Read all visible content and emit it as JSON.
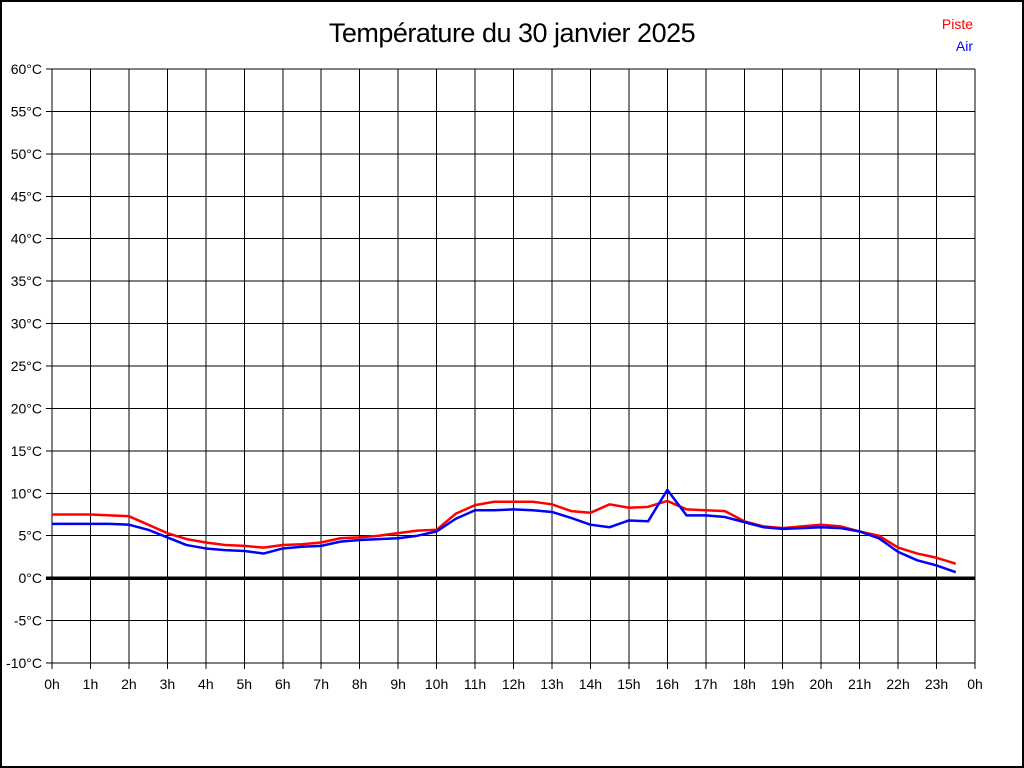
{
  "page_title": "Température du 30 janvier 2025",
  "legend": {
    "items": [
      {
        "label": "Piste",
        "color": "#ff0000"
      },
      {
        "label": "Air",
        "color": "#0000ff"
      }
    ]
  },
  "chart_data": {
    "type": "line",
    "title": "Température du 30 janvier 2025",
    "xlabel": "",
    "ylabel": "",
    "x_unit": "h",
    "xlim": [
      0,
      24
    ],
    "ylim": [
      -10,
      60
    ],
    "grid": true,
    "legend_position": "top-right",
    "zero_line": true,
    "x_ticks": [
      {
        "label": "0h",
        "value": 0
      },
      {
        "label": "1h",
        "value": 1
      },
      {
        "label": "2h",
        "value": 2
      },
      {
        "label": "3h",
        "value": 3
      },
      {
        "label": "4h",
        "value": 4
      },
      {
        "label": "5h",
        "value": 5
      },
      {
        "label": "6h",
        "value": 6
      },
      {
        "label": "7h",
        "value": 7
      },
      {
        "label": "8h",
        "value": 8
      },
      {
        "label": "9h",
        "value": 9
      },
      {
        "label": "10h",
        "value": 10
      },
      {
        "label": "11h",
        "value": 11
      },
      {
        "label": "12h",
        "value": 12
      },
      {
        "label": "13h",
        "value": 13
      },
      {
        "label": "14h",
        "value": 14
      },
      {
        "label": "15h",
        "value": 15
      },
      {
        "label": "16h",
        "value": 16
      },
      {
        "label": "17h",
        "value": 17
      },
      {
        "label": "18h",
        "value": 18
      },
      {
        "label": "19h",
        "value": 19
      },
      {
        "label": "20h",
        "value": 20
      },
      {
        "label": "21h",
        "value": 21
      },
      {
        "label": "22h",
        "value": 22
      },
      {
        "label": "23h",
        "value": 23
      },
      {
        "label": "0h",
        "value": 24
      }
    ],
    "y_ticks": [
      {
        "label": "60°C",
        "value": 60
      },
      {
        "label": "55°C",
        "value": 55
      },
      {
        "label": "50°C",
        "value": 50
      },
      {
        "label": "45°C",
        "value": 45
      },
      {
        "label": "40°C",
        "value": 40
      },
      {
        "label": "35°C",
        "value": 35
      },
      {
        "label": "30°C",
        "value": 30
      },
      {
        "label": "25°C",
        "value": 25
      },
      {
        "label": "20°C",
        "value": 20
      },
      {
        "label": "15°C",
        "value": 15
      },
      {
        "label": "10°C",
        "value": 10
      },
      {
        "label": "5°C",
        "value": 5
      },
      {
        "label": "0°C",
        "value": 0
      },
      {
        "label": "-5°C",
        "value": -5
      },
      {
        "label": "-10°C",
        "value": -10
      }
    ],
    "x": [
      0,
      0.5,
      1,
      1.5,
      2,
      2.5,
      3,
      3.5,
      4,
      4.5,
      5,
      5.5,
      6,
      6.5,
      7,
      7.5,
      8,
      8.5,
      9,
      9.5,
      10,
      10.5,
      11,
      11.5,
      12,
      12.5,
      13,
      13.5,
      14,
      14.5,
      15,
      15.5,
      16,
      16.5,
      17,
      17.5,
      18,
      18.5,
      19,
      19.5,
      20,
      20.5,
      21,
      21.5,
      22,
      22.5,
      23,
      23.5
    ],
    "series": [
      {
        "name": "Piste",
        "color": "#ff0000",
        "values": [
          7.5,
          7.5,
          7.5,
          7.4,
          7.3,
          6.3,
          5.3,
          4.6,
          4.2,
          3.9,
          3.8,
          3.6,
          3.9,
          4.0,
          4.2,
          4.7,
          4.8,
          5.0,
          5.3,
          5.6,
          5.7,
          7.6,
          8.6,
          9.0,
          9.0,
          9.0,
          8.7,
          7.9,
          7.7,
          8.7,
          8.3,
          8.4,
          9.1,
          8.1,
          8.0,
          7.9,
          6.7,
          6.1,
          5.9,
          6.1,
          6.3,
          6.1,
          5.5,
          5.0,
          3.6,
          2.9,
          2.4,
          1.7
        ]
      },
      {
        "name": "Air",
        "color": "#0000ff",
        "values": [
          6.4,
          6.4,
          6.4,
          6.4,
          6.3,
          5.7,
          4.8,
          3.9,
          3.5,
          3.3,
          3.2,
          2.9,
          3.5,
          3.7,
          3.8,
          4.3,
          4.5,
          4.6,
          4.7,
          5.0,
          5.5,
          7.0,
          8.0,
          8.0,
          8.1,
          8.0,
          7.8,
          7.1,
          6.3,
          6.0,
          6.8,
          6.7,
          10.4,
          7.4,
          7.4,
          7.2,
          6.6,
          6.0,
          5.8,
          5.9,
          6.0,
          5.9,
          5.5,
          4.7,
          3.1,
          2.1,
          1.5,
          0.7
        ]
      }
    ]
  }
}
